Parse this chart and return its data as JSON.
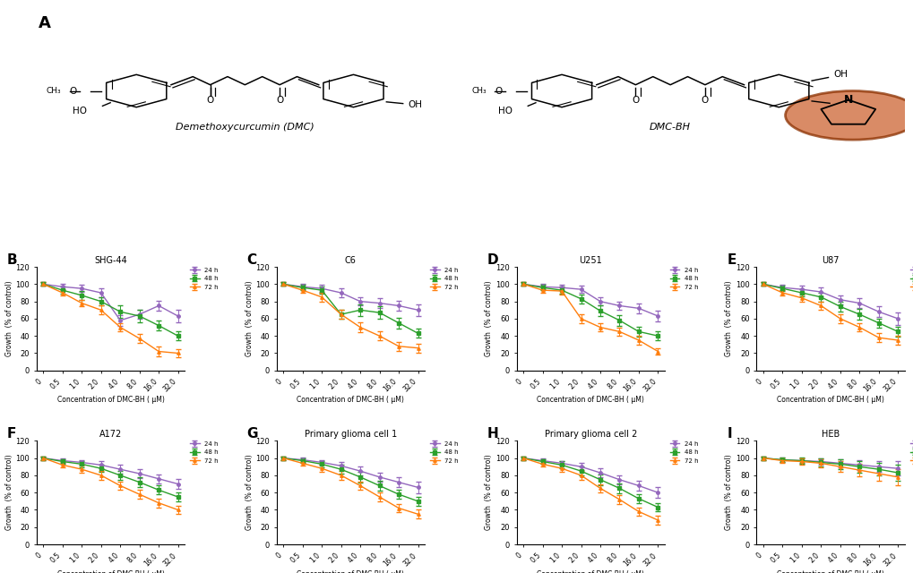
{
  "x_labels": [
    "0",
    "0.5",
    "1.0",
    "2.0",
    "4.0",
    "8.0",
    "16.0",
    "32.0"
  ],
  "x_values": [
    0,
    0.5,
    1.0,
    2.0,
    4.0,
    8.0,
    16.0,
    32.0
  ],
  "colors": {
    "24h": "#9467bd",
    "48h": "#2ca02c",
    "72h": "#ff7f0e"
  },
  "legend_labels": [
    "24 h",
    "48 h",
    "72 h"
  ],
  "ylabel": "Growth  (% of control)",
  "xlabel": "Concentration of DMC-BH ( μM)",
  "ylim": [
    0,
    120
  ],
  "yticks": [
    0,
    20,
    40,
    60,
    80,
    100,
    120
  ],
  "panels": [
    {
      "label": "B",
      "title": "SHG-44",
      "data_24h": [
        100,
        97,
        95,
        90,
        58,
        65,
        75,
        63
      ],
      "data_48h": [
        100,
        93,
        87,
        80,
        68,
        63,
        52,
        40
      ],
      "data_72h": [
        100,
        90,
        78,
        70,
        50,
        37,
        22,
        20
      ],
      "err_24h": [
        2,
        3,
        4,
        5,
        6,
        5,
        6,
        7
      ],
      "err_48h": [
        2,
        4,
        5,
        5,
        7,
        7,
        6,
        5
      ],
      "err_72h": [
        2,
        3,
        4,
        5,
        5,
        5,
        6,
        5
      ]
    },
    {
      "label": "C",
      "title": "C6",
      "data_24h": [
        100,
        97,
        95,
        90,
        80,
        78,
        75,
        70
      ],
      "data_48h": [
        100,
        96,
        93,
        65,
        70,
        67,
        55,
        43
      ],
      "data_72h": [
        100,
        93,
        85,
        65,
        50,
        40,
        28,
        26
      ],
      "err_24h": [
        2,
        3,
        4,
        5,
        5,
        6,
        6,
        7
      ],
      "err_48h": [
        2,
        3,
        4,
        5,
        7,
        7,
        6,
        5
      ],
      "err_72h": [
        2,
        3,
        5,
        5,
        6,
        5,
        5,
        5
      ]
    },
    {
      "label": "D",
      "title": "U251",
      "data_24h": [
        100,
        97,
        96,
        94,
        80,
        75,
        72,
        63
      ],
      "data_48h": [
        100,
        96,
        93,
        83,
        69,
        58,
        45,
        40
      ],
      "data_72h": [
        100,
        93,
        92,
        60,
        50,
        45,
        35,
        22
      ],
      "err_24h": [
        2,
        3,
        3,
        4,
        5,
        5,
        6,
        6
      ],
      "err_48h": [
        2,
        3,
        4,
        5,
        6,
        6,
        6,
        5
      ],
      "err_72h": [
        2,
        3,
        4,
        5,
        5,
        5,
        5,
        4
      ]
    },
    {
      "label": "E",
      "title": "U87",
      "data_24h": [
        100,
        96,
        94,
        91,
        82,
        78,
        68,
        60
      ],
      "data_48h": [
        100,
        95,
        90,
        85,
        74,
        65,
        55,
        45
      ],
      "data_72h": [
        100,
        90,
        84,
        75,
        60,
        50,
        38,
        35
      ],
      "err_24h": [
        2,
        3,
        4,
        5,
        5,
        6,
        6,
        7
      ],
      "err_48h": [
        2,
        3,
        4,
        5,
        6,
        6,
        5,
        6
      ],
      "err_72h": [
        2,
        3,
        4,
        5,
        5,
        5,
        5,
        5
      ]
    },
    {
      "label": "F",
      "title": "A172",
      "data_24h": [
        100,
        97,
        95,
        92,
        87,
        82,
        76,
        70
      ],
      "data_48h": [
        100,
        96,
        93,
        88,
        80,
        72,
        63,
        55
      ],
      "data_72h": [
        100,
        92,
        87,
        80,
        68,
        58,
        48,
        40
      ],
      "err_24h": [
        2,
        3,
        3,
        4,
        5,
        5,
        5,
        6
      ],
      "err_48h": [
        2,
        3,
        4,
        4,
        5,
        6,
        5,
        5
      ],
      "err_72h": [
        2,
        3,
        4,
        5,
        5,
        5,
        5,
        5
      ]
    },
    {
      "label": "G",
      "title": "Primary glioma cell 1",
      "data_24h": [
        100,
        98,
        95,
        91,
        85,
        78,
        72,
        66
      ],
      "data_48h": [
        100,
        97,
        93,
        87,
        78,
        68,
        58,
        50
      ],
      "data_72h": [
        100,
        94,
        88,
        80,
        68,
        55,
        42,
        35
      ],
      "err_24h": [
        2,
        3,
        3,
        4,
        5,
        5,
        6,
        7
      ],
      "err_48h": [
        2,
        3,
        4,
        5,
        6,
        6,
        5,
        5
      ],
      "err_72h": [
        2,
        3,
        4,
        5,
        5,
        5,
        5,
        5
      ]
    },
    {
      "label": "H",
      "title": "Primary glioma cell 2",
      "data_24h": [
        100,
        97,
        94,
        90,
        83,
        75,
        68,
        60
      ],
      "data_48h": [
        100,
        96,
        92,
        85,
        75,
        65,
        53,
        43
      ],
      "data_72h": [
        100,
        93,
        88,
        80,
        65,
        52,
        38,
        28
      ],
      "err_24h": [
        2,
        3,
        3,
        4,
        5,
        5,
        6,
        6
      ],
      "err_48h": [
        2,
        3,
        4,
        5,
        6,
        6,
        5,
        5
      ],
      "err_72h": [
        2,
        3,
        4,
        5,
        5,
        5,
        5,
        5
      ]
    },
    {
      "label": "I",
      "title": "HEB",
      "data_24h": [
        100,
        98,
        97,
        96,
        94,
        92,
        90,
        88
      ],
      "data_48h": [
        100,
        98,
        97,
        95,
        93,
        90,
        87,
        83
      ],
      "data_72h": [
        100,
        97,
        96,
        94,
        90,
        86,
        82,
        78
      ],
      "err_24h": [
        2,
        3,
        3,
        4,
        5,
        6,
        6,
        8
      ],
      "err_48h": [
        2,
        3,
        4,
        5,
        6,
        7,
        7,
        9
      ],
      "err_72h": [
        2,
        3,
        4,
        5,
        6,
        7,
        8,
        9
      ]
    }
  ]
}
